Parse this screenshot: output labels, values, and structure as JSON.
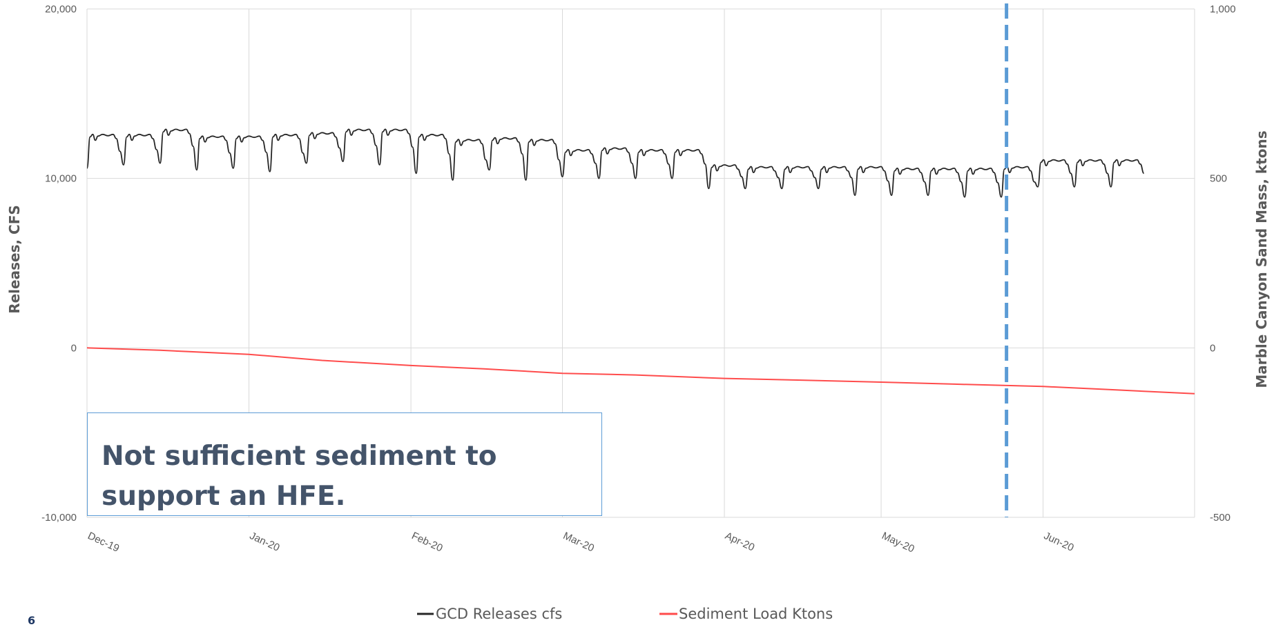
{
  "page_number": "6",
  "annotation": {
    "line1": "Not sufficient sediment to",
    "line2": "support an HFE."
  },
  "colors": {
    "releases": "#262626",
    "sediment": "#ff4b4b",
    "marker": "#5b9bd5",
    "grid": "#d9d9d9"
  },
  "chart_data": {
    "type": "line",
    "title": "",
    "x_range": [
      "2019-12-01",
      "2020-06-30"
    ],
    "x_tick_labels": [
      "Dec-19",
      "Jan-20",
      "Feb-20",
      "Mar-20",
      "Apr-20",
      "May-20",
      "Jun-20"
    ],
    "x_tick_dates": [
      "2019-12-01",
      "2020-01-01",
      "2020-02-01",
      "2020-03-01",
      "2020-04-01",
      "2020-05-01",
      "2020-06-01"
    ],
    "y_left": {
      "label": "Releases, CFS",
      "range": [
        -10000,
        20000
      ],
      "ticks": [
        20000,
        10000,
        0,
        -10000
      ],
      "tick_labels": [
        "20,000",
        "10,000",
        "0",
        "-10,000"
      ]
    },
    "y_right": {
      "label": "Marble Canyon Sand Mass, ktons",
      "range": [
        -500,
        1000
      ],
      "ticks": [
        1000,
        500,
        0,
        -500
      ],
      "tick_labels": [
        "1,000",
        "500",
        "0",
        "-500"
      ]
    },
    "grid": true,
    "legend_position": "bottom",
    "series": [
      {
        "name": "GCD Releases cfs",
        "axis": "left",
        "weekly_ranges": [
          [
            "2019-12-01",
            12600,
            10600
          ],
          [
            "2019-12-08",
            12600,
            10800
          ],
          [
            "2019-12-15",
            12900,
            10900
          ],
          [
            "2019-12-22",
            12500,
            10500
          ],
          [
            "2019-12-29",
            12500,
            10600
          ],
          [
            "2020-01-05",
            12600,
            10400
          ],
          [
            "2020-01-12",
            12700,
            10900
          ],
          [
            "2020-01-19",
            12900,
            11000
          ],
          [
            "2020-01-26",
            12900,
            10800
          ],
          [
            "2020-02-02",
            12600,
            10300
          ],
          [
            "2020-02-09",
            12300,
            9900
          ],
          [
            "2020-02-16",
            12400,
            10500
          ],
          [
            "2020-02-23",
            12300,
            9900
          ],
          [
            "2020-03-01",
            11700,
            10100
          ],
          [
            "2020-03-08",
            11800,
            10000
          ],
          [
            "2020-03-15",
            11700,
            10000
          ],
          [
            "2020-03-22",
            11700,
            10000
          ],
          [
            "2020-03-29",
            10800,
            9400
          ],
          [
            "2020-04-05",
            10700,
            9400
          ],
          [
            "2020-04-12",
            10700,
            9400
          ],
          [
            "2020-04-19",
            10700,
            9400
          ],
          [
            "2020-04-26",
            10700,
            9000
          ],
          [
            "2020-05-03",
            10600,
            9000
          ],
          [
            "2020-05-10",
            10600,
            9000
          ],
          [
            "2020-05-17",
            10600,
            8900
          ],
          [
            "2020-05-24",
            10700,
            8900
          ],
          [
            "2020-05-31",
            11100,
            9500
          ],
          [
            "2020-06-07",
            11100,
            9500
          ],
          [
            "2020-06-14",
            11100,
            9500
          ]
        ]
      },
      {
        "name": "Sediment Load Ktons",
        "axis": "right",
        "x": [
          "2019-12-01",
          "2019-12-15",
          "2020-01-01",
          "2020-01-15",
          "2020-02-01",
          "2020-02-15",
          "2020-03-01",
          "2020-03-15",
          "2020-04-01",
          "2020-04-15",
          "2020-05-01",
          "2020-05-15",
          "2020-06-01",
          "2020-06-15",
          "2020-06-30"
        ],
        "values": [
          0,
          -7,
          -19,
          -37,
          -52,
          -62,
          -75,
          -80,
          -90,
          -95,
          -101,
          -107,
          -114,
          -124,
          -135
        ]
      }
    ],
    "vertical_marker": {
      "date": "2020-05-25",
      "style": "dashed"
    }
  }
}
